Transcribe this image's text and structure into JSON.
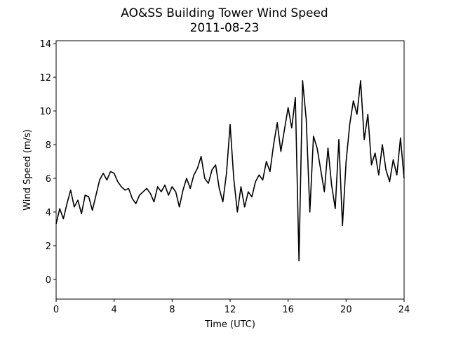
{
  "chart_data": {
    "type": "line",
    "title": "AO&SS Building Tower Wind Speed",
    "subtitle": "2011-08-23",
    "x_label": "Time (UTC)",
    "y_label": "Wind Speed (m/s)",
    "x": [
      0,
      0.25,
      0.5,
      0.75,
      1,
      1.25,
      1.5,
      1.75,
      2,
      2.25,
      2.5,
      2.75,
      3,
      3.25,
      3.5,
      3.75,
      4,
      4.25,
      4.5,
      4.75,
      5,
      5.25,
      5.5,
      5.75,
      6,
      6.25,
      6.5,
      6.75,
      7,
      7.25,
      7.5,
      7.75,
      8,
      8.25,
      8.5,
      8.75,
      9,
      9.25,
      9.5,
      9.75,
      10,
      10.25,
      10.5,
      10.75,
      11,
      11.25,
      11.5,
      11.75,
      12,
      12.25,
      12.5,
      12.75,
      13,
      13.25,
      13.5,
      13.75,
      14,
      14.25,
      14.5,
      14.75,
      15,
      15.25,
      15.5,
      15.75,
      16,
      16.25,
      16.5,
      16.75,
      17,
      17.25,
      17.5,
      17.75,
      18,
      18.25,
      18.5,
      18.75,
      19,
      19.25,
      19.5,
      19.75,
      20,
      20.25,
      20.5,
      20.75,
      21,
      21.25,
      21.5,
      21.75,
      22,
      22.25,
      22.5,
      22.75,
      23,
      23.25,
      23.5,
      23.75,
      24
    ],
    "series": [
      {
        "color": "#000000",
        "values": [
          3.3,
          4.2,
          3.6,
          4.5,
          5.3,
          4.3,
          4.7,
          3.9,
          5.0,
          4.9,
          4.1,
          5.0,
          5.9,
          6.3,
          5.9,
          6.4,
          6.3,
          5.8,
          5.5,
          5.3,
          5.4,
          4.8,
          4.5,
          5.0,
          5.2,
          5.4,
          5.1,
          4.6,
          5.5,
          5.2,
          5.6,
          5.0,
          5.5,
          5.2,
          4.3,
          5.3,
          6.0,
          5.4,
          6.2,
          6.6,
          7.3,
          6.0,
          5.7,
          6.5,
          6.8,
          5.4,
          4.6,
          6.3,
          9.2,
          6.0,
          4.0,
          5.5,
          4.3,
          5.2,
          4.9,
          5.8,
          6.2,
          5.9,
          7.0,
          6.4,
          8.0,
          9.3,
          7.6,
          8.9,
          10.2,
          9.0,
          10.8,
          1.1,
          11.8,
          9.5,
          4.0,
          8.5,
          7.8,
          6.5,
          5.2,
          7.8,
          5.6,
          4.2,
          8.3,
          3.2,
          7.0,
          9.2,
          10.6,
          9.8,
          11.8,
          8.3,
          9.8,
          6.8,
          7.5,
          6.2,
          8.0,
          6.5,
          5.8,
          7.1,
          6.2,
          8.4,
          6.0
        ]
      }
    ],
    "xlim": [
      0,
      24
    ],
    "xticks": [
      0,
      4,
      8,
      12,
      16,
      20,
      24
    ],
    "ylim": [
      -1.17,
      14.17
    ],
    "yticks": [
      0,
      2,
      4,
      6,
      8,
      10,
      12,
      14
    ]
  }
}
